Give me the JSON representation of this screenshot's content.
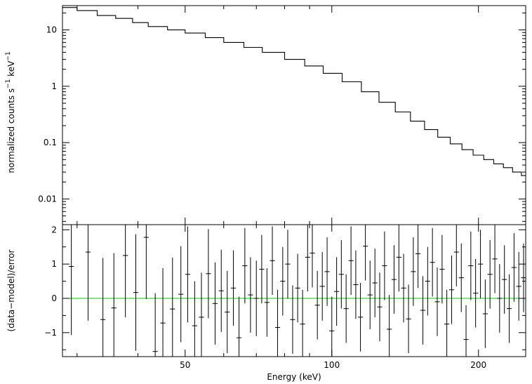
{
  "chart_data": [
    {
      "type": "line",
      "title": "",
      "xlabel": "Energy (keV)",
      "ylabel": "normalized counts s^-1 keV^-1",
      "ylabel_parts": {
        "main": "normalized counts s",
        "exp1": "−1",
        "mid": " keV",
        "exp2": "−1"
      },
      "x_scale": "log",
      "y_scale": "log",
      "xlim": [
        28,
        250
      ],
      "ylim": [
        0.0035,
        27
      ],
      "x_ticks": [
        50,
        100,
        200
      ],
      "x_tick_labels": [
        "50",
        "100",
        "200"
      ],
      "y_ticks": [
        0.01,
        0.1,
        1,
        10
      ],
      "y_tick_labels": [
        "0.01",
        "0.1",
        "1",
        "10"
      ],
      "grid": false,
      "series": [
        {
          "style": "step-histogram",
          "x": [
            28,
            30,
            33,
            36,
            39,
            42,
            46,
            50,
            55,
            60,
            66,
            72,
            80,
            88,
            96,
            105,
            115,
            125,
            135,
            145,
            155,
            165,
            175,
            185,
            195,
            205,
            215,
            225,
            235,
            245,
            250
          ],
          "y": [
            25,
            22,
            18,
            16,
            13.5,
            11.5,
            10,
            8.8,
            7.3,
            6.0,
            4.9,
            4.0,
            3.0,
            2.3,
            1.7,
            1.2,
            0.8,
            0.52,
            0.35,
            0.24,
            0.17,
            0.125,
            0.095,
            0.075,
            0.06,
            0.05,
            0.042,
            0.036,
            0.03,
            0.026,
            0.025
          ]
        }
      ]
    },
    {
      "type": "scatter",
      "title": "",
      "xlabel": "Energy (keV)",
      "ylabel": "(data−model)/error",
      "x_scale": "log",
      "ylim": [
        -1.7,
        2.15
      ],
      "y_ticks": [
        -1,
        0,
        1,
        2
      ],
      "y_tick_labels": [
        "−1",
        "0",
        "1",
        "2"
      ],
      "reference_line": {
        "y": 0,
        "color": "#00cc00"
      },
      "grid": false,
      "points": [
        {
          "x": 29.2,
          "y": 0.93,
          "err": 2.0
        },
        {
          "x": 31.6,
          "y": 1.35,
          "err": 2.0
        },
        {
          "x": 33.9,
          "y": -0.62,
          "err": 1.8
        },
        {
          "x": 35.7,
          "y": -0.28,
          "err": 1.6
        },
        {
          "x": 37.7,
          "y": 1.25,
          "err": 1.8
        },
        {
          "x": 39.6,
          "y": 0.17,
          "err": 1.7
        },
        {
          "x": 41.6,
          "y": 1.78,
          "err": 1.8
        },
        {
          "x": 43.4,
          "y": -1.55,
          "err": 1.7
        },
        {
          "x": 45.0,
          "y": -0.72,
          "err": 1.6
        },
        {
          "x": 47.1,
          "y": -0.31,
          "err": 1.5
        },
        {
          "x": 49.0,
          "y": 0.12,
          "err": 1.4
        },
        {
          "x": 50.6,
          "y": 0.7,
          "err": 1.4
        },
        {
          "x": 52.3,
          "y": -0.8,
          "err": 1.3
        },
        {
          "x": 54.0,
          "y": -0.55,
          "err": 1.3
        },
        {
          "x": 55.8,
          "y": 0.72,
          "err": 1.3
        },
        {
          "x": 57.6,
          "y": -0.15,
          "err": 1.2
        },
        {
          "x": 59.3,
          "y": 0.22,
          "err": 1.2
        },
        {
          "x": 61.0,
          "y": -0.4,
          "err": 1.2
        },
        {
          "x": 62.8,
          "y": 0.3,
          "err": 1.1
        },
        {
          "x": 64.5,
          "y": -1.15,
          "err": 1.2
        },
        {
          "x": 66.3,
          "y": 0.95,
          "err": 1.1
        },
        {
          "x": 68.1,
          "y": 0.1,
          "err": 1.1
        },
        {
          "x": 70.0,
          "y": 0.0,
          "err": 1.1
        },
        {
          "x": 71.8,
          "y": 0.85,
          "err": 1.0
        },
        {
          "x": 73.6,
          "y": -0.12,
          "err": 1.0
        },
        {
          "x": 75.5,
          "y": 1.1,
          "err": 1.0
        },
        {
          "x": 77.4,
          "y": -0.85,
          "err": 1.1
        },
        {
          "x": 79.3,
          "y": 0.5,
          "err": 1.0
        },
        {
          "x": 81.2,
          "y": 1.0,
          "err": 1.0
        },
        {
          "x": 83.1,
          "y": -0.62,
          "err": 1.0
        },
        {
          "x": 85.1,
          "y": 0.3,
          "err": 1.0
        },
        {
          "x": 87.1,
          "y": -0.75,
          "err": 1.0
        },
        {
          "x": 89.2,
          "y": 1.2,
          "err": 1.0
        },
        {
          "x": 91.2,
          "y": 1.32,
          "err": 1.0
        },
        {
          "x": 93.4,
          "y": -0.2,
          "err": 1.0
        },
        {
          "x": 95.6,
          "y": 0.35,
          "err": 1.0
        },
        {
          "x": 97.8,
          "y": 0.78,
          "err": 1.0
        },
        {
          "x": 100.0,
          "y": -0.95,
          "err": 1.0
        },
        {
          "x": 102.3,
          "y": 0.2,
          "err": 1.0
        },
        {
          "x": 104.6,
          "y": 0.7,
          "err": 1.0
        },
        {
          "x": 107.0,
          "y": -0.3,
          "err": 1.0
        },
        {
          "x": 109.5,
          "y": 1.1,
          "err": 1.0
        },
        {
          "x": 112.0,
          "y": 0.4,
          "err": 1.0
        },
        {
          "x": 114.5,
          "y": -0.55,
          "err": 1.0
        },
        {
          "x": 117.2,
          "y": 1.52,
          "err": 1.0
        },
        {
          "x": 119.8,
          "y": 0.1,
          "err": 1.0
        },
        {
          "x": 122.6,
          "y": 0.45,
          "err": 1.0
        },
        {
          "x": 125.4,
          "y": -0.25,
          "err": 1.0
        },
        {
          "x": 128.3,
          "y": 0.95,
          "err": 1.0
        },
        {
          "x": 131.2,
          "y": -0.9,
          "err": 1.0
        },
        {
          "x": 134.2,
          "y": 0.55,
          "err": 1.0
        },
        {
          "x": 137.3,
          "y": 1.2,
          "err": 1.0
        },
        {
          "x": 140.4,
          "y": 0.3,
          "err": 1.0
        },
        {
          "x": 143.7,
          "y": -0.6,
          "err": 1.0
        },
        {
          "x": 147.0,
          "y": 0.78,
          "err": 1.0
        },
        {
          "x": 150.3,
          "y": 1.3,
          "err": 1.0
        },
        {
          "x": 153.8,
          "y": -0.35,
          "err": 1.0
        },
        {
          "x": 157.3,
          "y": 0.5,
          "err": 1.0
        },
        {
          "x": 160.9,
          "y": 1.05,
          "err": 1.0
        },
        {
          "x": 164.6,
          "y": -0.1,
          "err": 1.0
        },
        {
          "x": 168.4,
          "y": 0.85,
          "err": 1.0
        },
        {
          "x": 172.2,
          "y": -0.75,
          "err": 1.0
        },
        {
          "x": 176.2,
          "y": 0.25,
          "err": 1.0
        },
        {
          "x": 180.2,
          "y": 1.35,
          "err": 1.0
        },
        {
          "x": 184.4,
          "y": 0.6,
          "err": 1.0
        },
        {
          "x": 188.6,
          "y": -1.2,
          "err": 1.0
        },
        {
          "x": 192.9,
          "y": 0.95,
          "err": 1.0
        },
        {
          "x": 197.3,
          "y": 0.15,
          "err": 1.0
        },
        {
          "x": 201.9,
          "y": 1.0,
          "err": 1.0
        },
        {
          "x": 206.5,
          "y": -0.45,
          "err": 1.0
        },
        {
          "x": 211.2,
          "y": 0.7,
          "err": 1.0
        },
        {
          "x": 216.1,
          "y": 1.15,
          "err": 1.0
        },
        {
          "x": 221.0,
          "y": 0.0,
          "err": 1.0
        },
        {
          "x": 226.1,
          "y": 0.55,
          "err": 1.0
        },
        {
          "x": 231.3,
          "y": -0.3,
          "err": 1.0
        },
        {
          "x": 236.6,
          "y": 0.9,
          "err": 1.0
        },
        {
          "x": 242.0,
          "y": 0.35,
          "err": 1.0
        },
        {
          "x": 247.5,
          "y": 0.6,
          "err": 1.0
        }
      ]
    }
  ]
}
